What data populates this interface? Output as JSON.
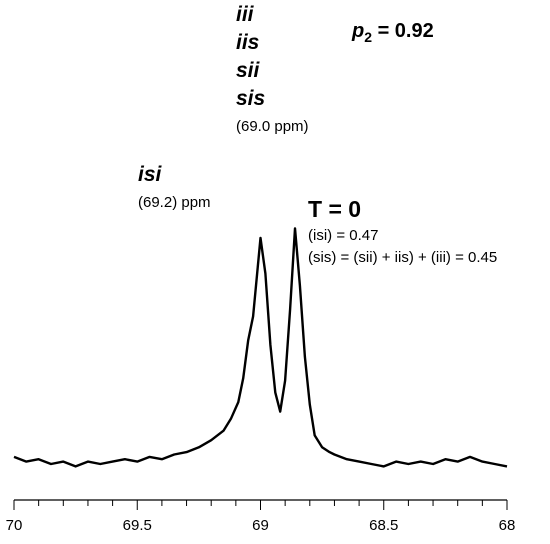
{
  "chart_data": {
    "type": "line",
    "title": "",
    "xlabel": "",
    "ylabel": "",
    "x_reversed": true,
    "xlim": [
      70,
      68
    ],
    "ylim": [
      0,
      100
    ],
    "x_ticks": [
      "70",
      "69.5",
      "69",
      "68.5",
      "68"
    ],
    "x": [
      70.0,
      69.95,
      69.9,
      69.85,
      69.8,
      69.75,
      69.7,
      69.65,
      69.6,
      69.55,
      69.5,
      69.45,
      69.4,
      69.35,
      69.3,
      69.25,
      69.2,
      69.15,
      69.12,
      69.09,
      69.07,
      69.05,
      69.03,
      69.0,
      68.98,
      68.96,
      68.94,
      68.92,
      68.9,
      68.88,
      68.86,
      68.84,
      68.82,
      68.8,
      68.78,
      68.75,
      68.72,
      68.7,
      68.65,
      68.6,
      68.55,
      68.5,
      68.45,
      68.4,
      68.35,
      68.3,
      68.25,
      68.2,
      68.15,
      68.1,
      68.05,
      68.0
    ],
    "series": [
      {
        "values": [
          3,
          1,
          2,
          0,
          1,
          -1,
          1,
          0,
          1,
          2,
          1,
          3,
          2,
          4,
          5,
          7,
          10,
          14,
          19,
          26,
          36,
          52,
          62,
          95,
          80,
          50,
          30,
          22,
          35,
          65,
          99,
          75,
          45,
          25,
          12,
          7,
          5,
          4,
          2,
          1,
          0,
          -1,
          1,
          0,
          1,
          0,
          2,
          1,
          3,
          1,
          0,
          -1
        ]
      }
    ]
  },
  "labels": {
    "iii": "iii",
    "iis": "iis",
    "sii": "sii",
    "sis": "sis",
    "sis_ppm": "(69.0 ppm)",
    "isi": "isi",
    "isi_ppm": "(69.2) ppm",
    "p2_p": "p",
    "p2_sub": "2",
    "p2_value": " = 0.92",
    "t_label": "T = 0",
    "isi_fraction": "(isi) = 0.47",
    "sis_sum": "(sis) = (sii) + iis) + (iii) = 0.45"
  }
}
